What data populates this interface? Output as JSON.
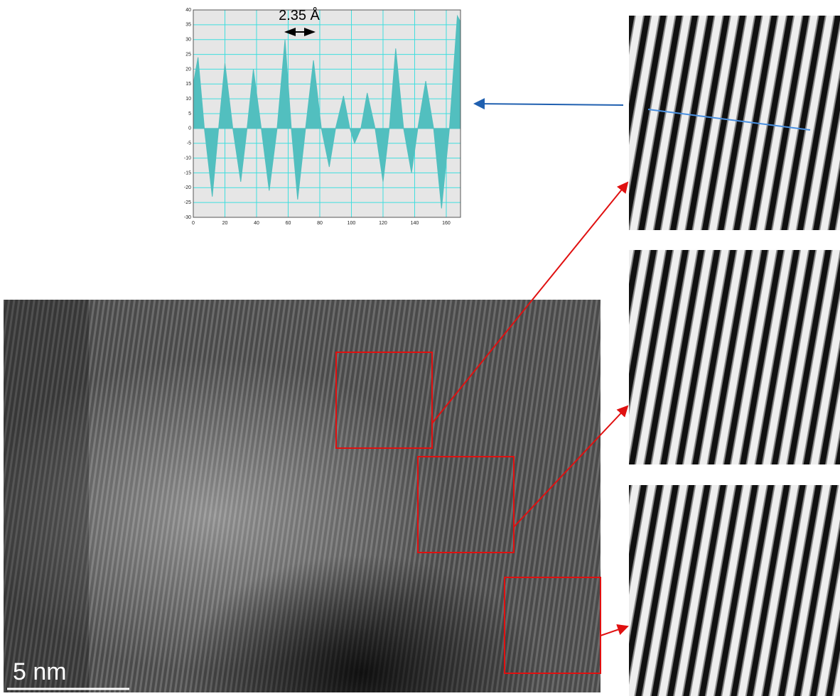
{
  "chart_data": {
    "type": "area",
    "annotation": "2.35 Å",
    "x": [
      0,
      3,
      7,
      12,
      16,
      20,
      25,
      30,
      34,
      38,
      43,
      48,
      53,
      58,
      62,
      66,
      71,
      76,
      81,
      86,
      90,
      95,
      99,
      102,
      106,
      110,
      115,
      120,
      124,
      128,
      133,
      138,
      142,
      147,
      152,
      157,
      162,
      167,
      169
    ],
    "values": [
      15,
      24,
      0,
      -23,
      0,
      22,
      0,
      -18,
      0,
      20,
      0,
      -21,
      0,
      30,
      0,
      -24,
      0,
      23,
      0,
      -13,
      0,
      11,
      0,
      -5,
      0,
      12,
      0,
      -18,
      0,
      27,
      0,
      -15,
      0,
      16,
      0,
      -27,
      0,
      38,
      36
    ],
    "color": "#52bfbf",
    "grid": true,
    "xlim": [
      0,
      169
    ],
    "xticks": [
      0,
      20,
      40,
      60,
      80,
      100,
      120,
      140,
      160
    ],
    "ylim": [
      -30,
      40
    ],
    "yticks": [
      -30,
      -25,
      -20,
      -15,
      -10,
      -5,
      0,
      5,
      10,
      15,
      20,
      25,
      30,
      35,
      40
    ]
  },
  "micrograph": {
    "scale_bar_label": "5 nm"
  }
}
